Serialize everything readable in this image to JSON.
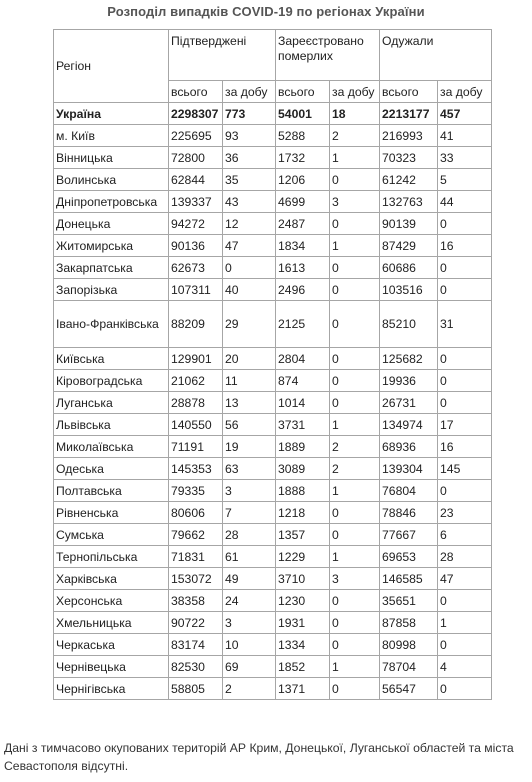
{
  "title": "Розподіл випадків COVID-19 по регіонах України",
  "headers": {
    "region": "Регіон",
    "confirmed": "Підтверджені",
    "deaths": "Зареєстровано померлих",
    "recovered": "Одужали",
    "total": "всього",
    "daily": "за добу"
  },
  "rows": [
    {
      "region": "Україна",
      "c_total": "2298307",
      "c_daily": "773",
      "d_total": "54001",
      "d_daily": "18",
      "r_total": "2213177",
      "r_daily": "457"
    },
    {
      "region": "м. Київ",
      "c_total": "225695",
      "c_daily": "93",
      "d_total": "5288",
      "d_daily": "2",
      "r_total": "216993",
      "r_daily": "41"
    },
    {
      "region": "Вінницька",
      "c_total": "72800",
      "c_daily": "36",
      "d_total": "1732",
      "d_daily": "1",
      "r_total": "70323",
      "r_daily": "33"
    },
    {
      "region": "Волинська",
      "c_total": "62844",
      "c_daily": "35",
      "d_total": "1206",
      "d_daily": "0",
      "r_total": "61242",
      "r_daily": "5"
    },
    {
      "region": "Дніпропетровська",
      "c_total": "139337",
      "c_daily": "43",
      "d_total": "4699",
      "d_daily": "3",
      "r_total": "132763",
      "r_daily": "44"
    },
    {
      "region": "Донецька",
      "c_total": "94272",
      "c_daily": "12",
      "d_total": "2487",
      "d_daily": "0",
      "r_total": "90139",
      "r_daily": "0"
    },
    {
      "region": "Житомирська",
      "c_total": "90136",
      "c_daily": "47",
      "d_total": "1834",
      "d_daily": "1",
      "r_total": "87429",
      "r_daily": "16"
    },
    {
      "region": "Закарпатська",
      "c_total": "62673",
      "c_daily": "0",
      "d_total": "1613",
      "d_daily": "0",
      "r_total": "60686",
      "r_daily": "0"
    },
    {
      "region": "Запорізька",
      "c_total": "107311",
      "c_daily": "40",
      "d_total": "2496",
      "d_daily": "0",
      "r_total": "103516",
      "r_daily": "0"
    },
    {
      "region": "Івано-Франківська",
      "c_total": "88209",
      "c_daily": "29",
      "d_total": "2125",
      "d_daily": "0",
      "r_total": "85210",
      "r_daily": "31"
    },
    {
      "region": "Київська",
      "c_total": "129901",
      "c_daily": "20",
      "d_total": "2804",
      "d_daily": "0",
      "r_total": "125682",
      "r_daily": "0"
    },
    {
      "region": "Кіровоградська",
      "c_total": "21062",
      "c_daily": "11",
      "d_total": "874",
      "d_daily": "0",
      "r_total": "19936",
      "r_daily": "0"
    },
    {
      "region": "Луганська",
      "c_total": "28878",
      "c_daily": "13",
      "d_total": "1014",
      "d_daily": "0",
      "r_total": "26731",
      "r_daily": "0"
    },
    {
      "region": "Львівська",
      "c_total": "140550",
      "c_daily": "56",
      "d_total": "3731",
      "d_daily": "1",
      "r_total": "134974",
      "r_daily": "17"
    },
    {
      "region": "Миколаївська",
      "c_total": "71191",
      "c_daily": "19",
      "d_total": "1889",
      "d_daily": "2",
      "r_total": "68936",
      "r_daily": "16"
    },
    {
      "region": "Одеська",
      "c_total": "145353",
      "c_daily": "63",
      "d_total": "3089",
      "d_daily": "2",
      "r_total": "139304",
      "r_daily": "145"
    },
    {
      "region": "Полтавська",
      "c_total": "79335",
      "c_daily": "3",
      "d_total": "1888",
      "d_daily": "1",
      "r_total": "76804",
      "r_daily": "0"
    },
    {
      "region": "Рівненська",
      "c_total": "80606",
      "c_daily": "7",
      "d_total": "1218",
      "d_daily": "0",
      "r_total": "78846",
      "r_daily": "23"
    },
    {
      "region": "Сумська",
      "c_total": "79662",
      "c_daily": "28",
      "d_total": "1357",
      "d_daily": "0",
      "r_total": "77667",
      "r_daily": "6"
    },
    {
      "region": "Тернопільська",
      "c_total": "71831",
      "c_daily": "61",
      "d_total": "1229",
      "d_daily": "1",
      "r_total": "69653",
      "r_daily": "28"
    },
    {
      "region": "Харківська",
      "c_total": "153072",
      "c_daily": "49",
      "d_total": "3710",
      "d_daily": "3",
      "r_total": "146585",
      "r_daily": "47"
    },
    {
      "region": "Херсонська",
      "c_total": "38358",
      "c_daily": "24",
      "d_total": "1230",
      "d_daily": "0",
      "r_total": "35651",
      "r_daily": "0"
    },
    {
      "region": "Хмельницька",
      "c_total": "90722",
      "c_daily": "3",
      "d_total": "1931",
      "d_daily": "0",
      "r_total": "87858",
      "r_daily": "1"
    },
    {
      "region": "Черкаська",
      "c_total": "83174",
      "c_daily": "10",
      "d_total": "1334",
      "d_daily": "0",
      "r_total": "80998",
      "r_daily": "0"
    },
    {
      "region": "Чернівецька",
      "c_total": "82530",
      "c_daily": "69",
      "d_total": "1852",
      "d_daily": "1",
      "r_total": "78704",
      "r_daily": "4"
    },
    {
      "region": "Чернігівська",
      "c_total": "58805",
      "c_daily": "2",
      "d_total": "1371",
      "d_daily": "0",
      "r_total": "56547",
      "r_daily": "0"
    }
  ],
  "note": "Дані з тимчасово окупованих територій АР Крим, Донецької, Луганської областей та міста Севастополя відсутні."
}
